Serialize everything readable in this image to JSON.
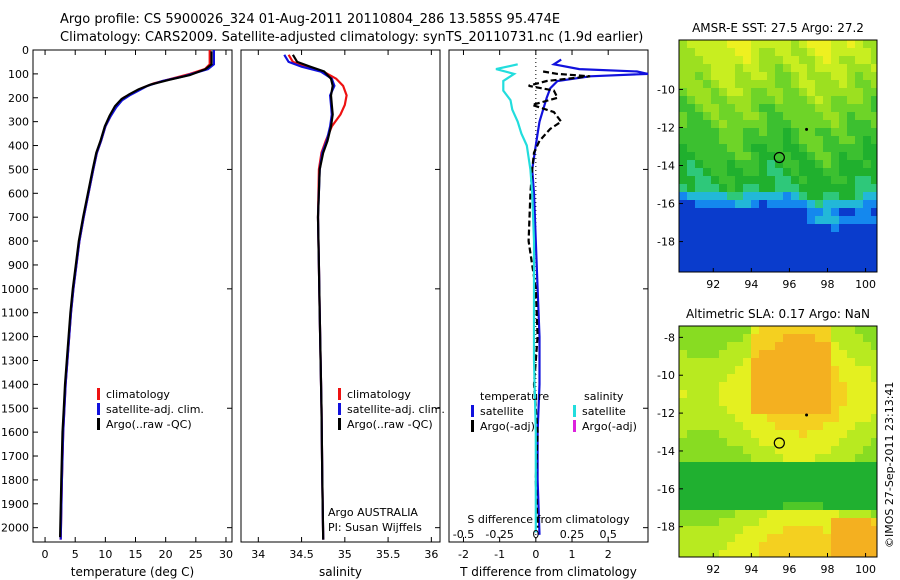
{
  "header": {
    "line1": "Argo profile: CS 5900026_324 01-Aug-2011 20110804_286 13.585S 95.474E",
    "line2": "Climatology: CARS2009. Satellite-adjusted climatology: synTS_20110731.nc (1.9d earlier)"
  },
  "credit": "©IMOS 27-Sep-2011 23:13:41",
  "colors": {
    "climatology": "#ee1111",
    "satellite": "#1111dd",
    "argo": "#000000",
    "sal_satellite": "#22dddd",
    "sal_argo": "#dd22dd"
  },
  "chart_data": [
    {
      "type": "line",
      "xlabel": "temperature (deg C)",
      "xlim": [
        -2,
        31
      ],
      "ylim": [
        2060,
        0
      ],
      "xticks": [
        0,
        5,
        10,
        15,
        20,
        25,
        30
      ],
      "yticks": [
        0,
        100,
        200,
        300,
        400,
        500,
        600,
        700,
        800,
        900,
        1000,
        1100,
        1200,
        1300,
        1400,
        1500,
        1600,
        1700,
        1800,
        1900,
        2000
      ],
      "legend": [
        "climatology",
        "satellite-adj. clim.",
        "Argo(..raw -QC)"
      ],
      "series": [
        {
          "name": "climatology",
          "x": [
            27.3,
            27.3,
            26.5,
            24,
            21,
            18,
            16,
            14.5,
            13,
            12,
            11,
            10,
            9.3,
            8.6,
            8,
            7.2,
            6.4,
            5.7,
            5.2,
            4.7,
            4.3,
            4,
            3.7,
            3.4,
            3.2,
            3,
            2.8,
            2.6
          ],
          "y": [
            0,
            60,
            80,
            100,
            120,
            140,
            160,
            180,
            200,
            230,
            270,
            320,
            380,
            430,
            500,
            600,
            700,
            800,
            900,
            1000,
            1100,
            1200,
            1300,
            1400,
            1500,
            1600,
            1800,
            2050
          ]
        },
        {
          "name": "satellite-adj. clim.",
          "x": [
            28,
            28,
            27,
            23,
            19.5,
            17,
            15.5,
            14,
            12.8,
            11.8,
            10.8,
            10,
            9.3,
            8.6,
            8,
            7.2,
            6.4,
            5.7,
            5.2,
            4.7,
            4.3,
            4,
            3.7,
            3.4,
            3.2,
            3,
            2.8,
            2.6
          ],
          "y": [
            0,
            60,
            80,
            110,
            130,
            150,
            170,
            190,
            210,
            240,
            280,
            320,
            380,
            430,
            500,
            600,
            700,
            800,
            900,
            1000,
            1100,
            1200,
            1300,
            1400,
            1500,
            1600,
            1800,
            2050
          ]
        },
        {
          "name": "Argo(..raw -QC)",
          "x": [
            27.6,
            27.6,
            26.6,
            24,
            20.5,
            17.5,
            15.5,
            14,
            12.7,
            11.6,
            10.7,
            9.9,
            9.2,
            8.5,
            7.9,
            7.1,
            6.3,
            5.6,
            5.1,
            4.6,
            4.2,
            3.9,
            3.6,
            3.3,
            3.1,
            2.9,
            2.7,
            2.5
          ],
          "y": [
            5,
            60,
            80,
            105,
            125,
            145,
            165,
            185,
            205,
            235,
            275,
            320,
            380,
            430,
            500,
            600,
            700,
            800,
            900,
            1000,
            1100,
            1200,
            1300,
            1400,
            1500,
            1600,
            1800,
            2040
          ]
        }
      ]
    },
    {
      "type": "line",
      "xlabel": "salinity",
      "xlim": [
        33.8,
        36.1
      ],
      "ylim": [
        2060,
        0
      ],
      "xticks": [
        34,
        34.5,
        35,
        35.5,
        36
      ],
      "legend": [
        "climatology",
        "satellite-adj. clim.",
        "Argo(..raw -QC)"
      ],
      "annotations": [
        "Argo AUSTRALIA",
        "PI: Susan Wijffels"
      ],
      "series": [
        {
          "name": "climatology",
          "x": [
            34.35,
            34.4,
            34.55,
            34.75,
            34.9,
            34.98,
            35.02,
            35.0,
            34.95,
            34.85,
            34.78,
            34.73,
            34.7,
            34.69,
            34.7,
            34.71,
            34.72,
            34.73,
            34.74,
            34.75
          ],
          "y": [
            20,
            50,
            70,
            90,
            120,
            150,
            190,
            230,
            270,
            320,
            380,
            430,
            500,
            700,
            900,
            1100,
            1300,
            1500,
            1800,
            2050
          ]
        },
        {
          "name": "satellite-adj. clim.",
          "x": [
            34.3,
            34.35,
            34.5,
            34.72,
            34.85,
            34.88,
            34.83,
            34.84,
            34.85,
            34.83,
            34.79,
            34.74,
            34.71,
            34.69,
            34.7,
            34.71,
            34.72,
            34.73,
            34.74,
            34.75
          ],
          "y": [
            20,
            50,
            70,
            90,
            120,
            150,
            190,
            230,
            270,
            320,
            380,
            430,
            500,
            700,
            900,
            1100,
            1300,
            1500,
            1800,
            2050
          ]
        },
        {
          "name": "Argo(..raw -QC)",
          "x": [
            34.4,
            34.45,
            34.6,
            34.76,
            34.84,
            34.86,
            34.84,
            34.85,
            34.86,
            34.84,
            34.8,
            34.75,
            34.71,
            34.69,
            34.7,
            34.71,
            34.72,
            34.73,
            34.74,
            34.75
          ],
          "y": [
            20,
            50,
            70,
            90,
            120,
            150,
            190,
            230,
            270,
            320,
            380,
            430,
            500,
            700,
            900,
            1100,
            1300,
            1500,
            1800,
            2050
          ]
        }
      ]
    },
    {
      "type": "line",
      "xlabel": "T difference from climatology",
      "xlabel2": "S difference from climatology",
      "xlim": [
        -2.4,
        3.1
      ],
      "ylim": [
        2060,
        0
      ],
      "xticks": [
        -2,
        -1,
        0,
        1,
        2
      ],
      "xticks2": [
        "-0.5",
        "-0.25",
        "0",
        "0.25",
        "0.5"
      ],
      "legend_headers": [
        "temperature",
        "salinity"
      ],
      "legend": [
        "satellite",
        "Argo(-adj)",
        "satellite",
        "Argo(-adj)"
      ],
      "series": [
        {
          "name": "temperature satellite",
          "x": [
            0.7,
            0.5,
            1.2,
            2.8,
            3.1,
            1.5,
            0.6,
            0.4,
            0.3,
            0.2,
            0.1,
            0.05,
            0,
            -0.1,
            -0.05,
            0,
            0.05,
            0.1,
            0.1,
            0.05,
            0.05,
            0.1
          ],
          "y": [
            40,
            60,
            80,
            90,
            100,
            110,
            130,
            160,
            200,
            250,
            300,
            350,
            400,
            500,
            600,
            800,
            1000,
            1200,
            1400,
            1600,
            1800,
            2030
          ]
        },
        {
          "name": "temperature Argo(-adj)",
          "x": [
            0.2,
            0.6,
            1.5,
            0.3,
            -0.2,
            0.5,
            0.6,
            -0.1,
            0.5,
            0.7,
            0.4,
            0.1,
            -0.05,
            -0.1,
            -0.15,
            -0.2,
            0,
            0.05,
            -0.05,
            0.05,
            0,
            0.05
          ],
          "y": [
            90,
            100,
            110,
            130,
            150,
            170,
            200,
            230,
            260,
            300,
            330,
            380,
            430,
            500,
            600,
            800,
            1000,
            1200,
            1400,
            1600,
            1800,
            2000
          ]
        },
        {
          "name": "salinity satellite",
          "x": [
            -0.5,
            -1.1,
            -0.6,
            -0.9,
            -0.9,
            -0.7,
            -0.65,
            -0.5,
            -0.4,
            -0.25,
            -0.2,
            -0.15,
            -0.1,
            -0.05,
            -0.05,
            -0.05,
            0,
            0
          ],
          "y": [
            60,
            80,
            100,
            130,
            170,
            210,
            250,
            300,
            350,
            400,
            450,
            500,
            600,
            800,
            1000,
            1300,
            1600,
            2020
          ]
        },
        {
          "name": "salinity Argo(-adj)",
          "x": [],
          "y": []
        }
      ]
    },
    {
      "type": "heatmap",
      "title": "AMSR-E SST: 27.5 Argo: 27.2",
      "xlim": [
        90.2,
        100.6
      ],
      "ylim": [
        -19.6,
        -7.4
      ],
      "xticks": [
        92,
        94,
        96,
        98,
        100
      ],
      "yticks": [
        -10,
        -12,
        -14,
        -16,
        -18
      ],
      "marker": {
        "x": 95.47,
        "y": -13.58
      },
      "colors": [
        "#0a3ccc",
        "#1488ee",
        "#22b8d8",
        "#2ec87a",
        "#20b02e",
        "#3cc030",
        "#6ed428",
        "#9ce020",
        "#c8ee20",
        "#eef020"
      ]
    },
    {
      "type": "heatmap",
      "title": "Altimetric SLA: 0.17 Argo: NaN",
      "xlim": [
        90.2,
        100.6
      ],
      "ylim": [
        -19.6,
        -7.4
      ],
      "xticks": [
        92,
        94,
        96,
        98,
        100
      ],
      "yticks": [
        -8,
        -10,
        -12,
        -14,
        -16,
        -18
      ],
      "marker": {
        "x": 95.47,
        "y": -13.58
      },
      "colors": [
        "#20b030",
        "#50c828",
        "#88dc22",
        "#b8ea20",
        "#e4f020",
        "#f4d020",
        "#f4b020"
      ]
    }
  ]
}
